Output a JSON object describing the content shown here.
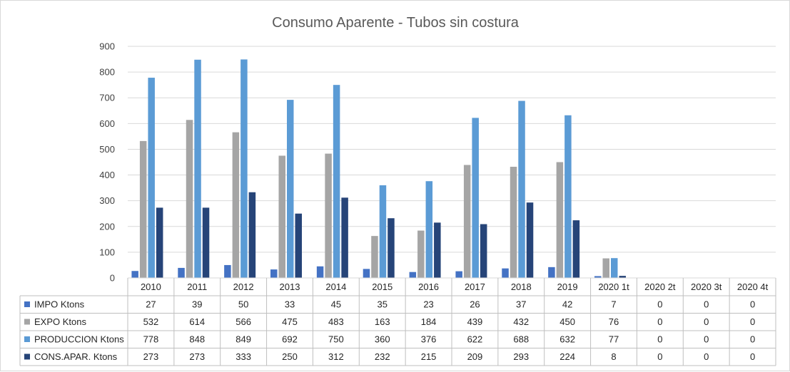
{
  "chart_data": {
    "type": "bar",
    "title": "Consumo Aparente - Tubos sin costura",
    "categories": [
      "2010",
      "2011",
      "2012",
      "2013",
      "2014",
      "2015",
      "2016",
      "2017",
      "2018",
      "2019",
      "2020 1t",
      "2020 2t",
      "2020 3t",
      "2020 4t"
    ],
    "series": [
      {
        "name": "IMPO Ktons",
        "color": "#4472c4",
        "values": [
          27,
          39,
          50,
          33,
          45,
          35,
          23,
          26,
          37,
          42,
          7,
          0,
          0,
          0
        ]
      },
      {
        "name": "EXPO Ktons",
        "color": "#a5a5a5",
        "values": [
          532,
          614,
          566,
          475,
          483,
          163,
          184,
          439,
          432,
          450,
          76,
          0,
          0,
          0
        ]
      },
      {
        "name": "PRODUCCION Ktons",
        "color": "#5b9bd5",
        "values": [
          778,
          848,
          849,
          692,
          750,
          360,
          376,
          622,
          688,
          632,
          77,
          0,
          0,
          0
        ]
      },
      {
        "name": "CONS.APAR. Ktons",
        "color": "#264478",
        "values": [
          273,
          273,
          333,
          250,
          312,
          232,
          215,
          209,
          293,
          224,
          8,
          0,
          0,
          0
        ]
      }
    ],
    "ylim": [
      0,
      900
    ],
    "yticks": [
      0,
      100,
      200,
      300,
      400,
      500,
      600,
      700,
      800,
      900
    ],
    "grid": true,
    "legend": "data-table"
  }
}
